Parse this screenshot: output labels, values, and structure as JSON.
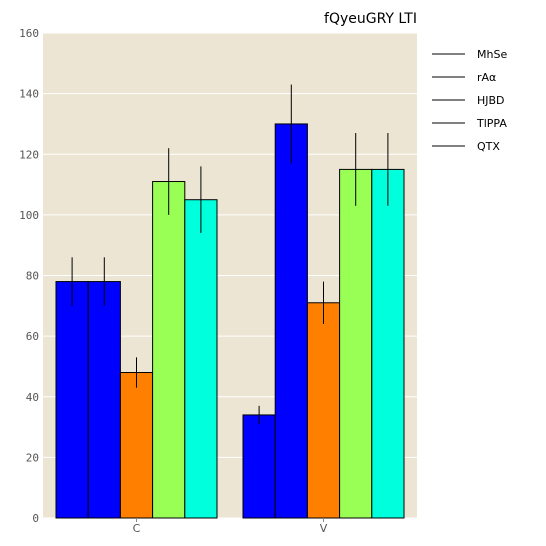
{
  "chart_data": {
    "type": "bar",
    "title": "fQyeuGRY LTI",
    "xlabel": "",
    "ylabel": "",
    "categories": [
      "C",
      "V"
    ],
    "ylim": [
      0,
      160
    ],
    "yticks": [
      0,
      20,
      40,
      60,
      80,
      100,
      120,
      140,
      160
    ],
    "grid": true,
    "legend_position": "outside-right",
    "background": "#ede5d3",
    "series": [
      {
        "name": "MhSe",
        "color": "#0000ff",
        "values": [
          78,
          34
        ],
        "errors": [
          8,
          3
        ]
      },
      {
        "name": "rAα",
        "color": "#0000ff",
        "values": [
          78,
          130
        ],
        "errors": [
          8,
          13
        ]
      },
      {
        "name": "HJBD",
        "color": "#ff8000",
        "values": [
          48,
          71
        ],
        "errors": [
          5,
          7
        ]
      },
      {
        "name": "TlPPA",
        "color": "#99ff55",
        "values": [
          111,
          115
        ],
        "errors": [
          11,
          12
        ]
      },
      {
        "name": "QTX",
        "color": "#00ffdd",
        "values": [
          105,
          115
        ],
        "errors": [
          11,
          12
        ]
      }
    ]
  }
}
